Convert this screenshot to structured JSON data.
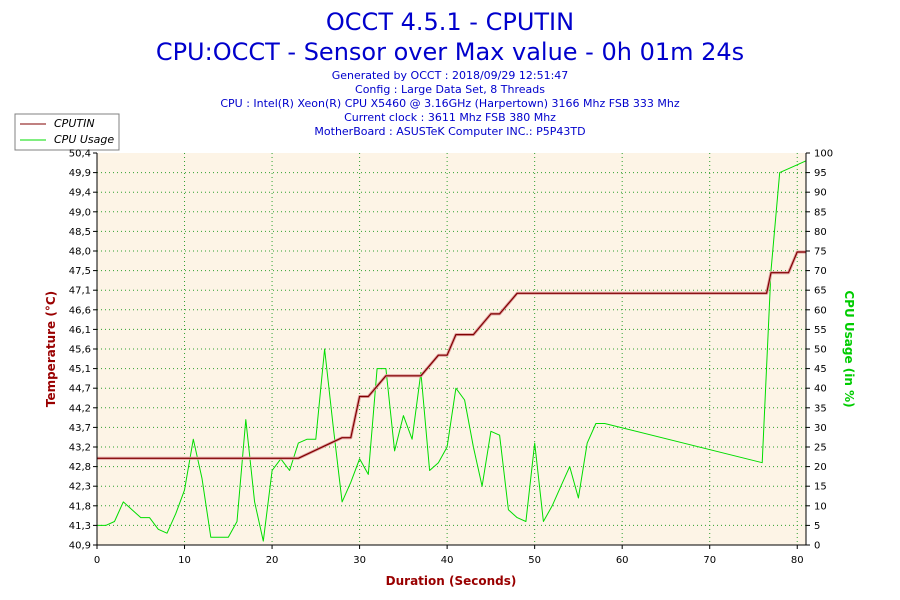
{
  "header": {
    "title": "OCCT 4.5.1 - CPUTIN",
    "subtitle": "CPU:OCCT - Sensor over Max value - 0h 01m 24s",
    "info_lines": [
      "Generated by OCCT : 2018/09/29 12:51:47",
      "Config : Large Data Set, 8 Threads",
      "CPU : Intel(R) Xeon(R) CPU X5460 @ 3.16GHz (Harpertown) 3166 Mhz FSB 333 Mhz",
      "Current clock : 3611 Mhz FSB 380 Mhz",
      "MotherBoard : ASUSTeK Computer INC.: P5P43TD"
    ]
  },
  "legend": {
    "items": [
      {
        "label": "CPUTIN",
        "color": "#800000"
      },
      {
        "label": "CPU Usage",
        "color": "#00dd00"
      }
    ]
  },
  "chart_data": {
    "type": "line",
    "title": "OCCT 4.5.1 - CPUTIN",
    "xlabel": "Duration (Seconds)",
    "ylabel": "Temperature (°C)",
    "y2label": "CPU Usage (in %)",
    "xlim": [
      0,
      81
    ],
    "ylim": [
      40.9,
      50.4
    ],
    "y2lim": [
      0,
      100
    ],
    "x_ticks": [
      "0",
      "10",
      "20",
      "30",
      "40",
      "50",
      "60",
      "70",
      "80"
    ],
    "y_ticks": [
      "40,9",
      "41,3",
      "41,8",
      "42,3",
      "42,8",
      "43,2",
      "43,7",
      "44,2",
      "44,7",
      "45,1",
      "45,6",
      "46,1",
      "46,6",
      "47,1",
      "47,5",
      "48,0",
      "48,5",
      "49,0",
      "49,4",
      "49,9",
      "50,4"
    ],
    "y2_ticks": [
      "0",
      "5",
      "10",
      "15",
      "20",
      "25",
      "30",
      "35",
      "40",
      "45",
      "50",
      "55",
      "60",
      "65",
      "70",
      "75",
      "80",
      "85",
      "90",
      "95",
      "100"
    ],
    "grid": true,
    "legend_position": "top-left",
    "series": [
      {
        "name": "CPUTIN",
        "color": "#800000",
        "axis": "left",
        "x": [
          0,
          23,
          28,
          29,
          30,
          31,
          33,
          37,
          39,
          40,
          41,
          43,
          45,
          46,
          48,
          49,
          60,
          70,
          76,
          76.5,
          77,
          79,
          80,
          81
        ],
        "y": [
          43.0,
          43.0,
          43.5,
          43.5,
          44.5,
          44.5,
          45.0,
          45.0,
          45.5,
          45.5,
          46.0,
          46.0,
          46.5,
          46.5,
          47.0,
          47.0,
          47.0,
          47.0,
          47.0,
          47.0,
          47.5,
          47.5,
          48.0,
          48.0
        ]
      },
      {
        "name": "CPU Usage",
        "color": "#00dd00",
        "axis": "right",
        "x": [
          0,
          1,
          2,
          3,
          4,
          5,
          6,
          7,
          8,
          9,
          10,
          11,
          12,
          13,
          14,
          15,
          16,
          17,
          18,
          19,
          20,
          21,
          22,
          23,
          24,
          25,
          26,
          27,
          28,
          29,
          30,
          31,
          32,
          33,
          34,
          35,
          36,
          37,
          38,
          39,
          40,
          41,
          42,
          43,
          44,
          45,
          46,
          47,
          48,
          49,
          50,
          51,
          52,
          53,
          54,
          55,
          56,
          57,
          58,
          76,
          77,
          78,
          79,
          80,
          81
        ],
        "y": [
          5,
          5,
          6,
          11,
          9,
          7,
          7,
          4,
          3,
          8,
          14,
          27,
          17,
          2,
          2,
          2,
          6,
          32,
          11,
          1,
          19,
          22,
          19,
          26,
          27,
          27,
          50,
          30,
          11,
          16,
          22,
          18,
          45,
          45,
          24,
          33,
          27,
          44,
          19,
          21,
          25,
          40,
          37,
          25,
          15,
          29,
          28,
          9,
          7,
          6,
          26,
          6,
          10,
          15,
          20,
          12,
          26,
          31,
          31,
          21,
          70,
          95,
          96,
          97,
          98
        ]
      }
    ]
  }
}
